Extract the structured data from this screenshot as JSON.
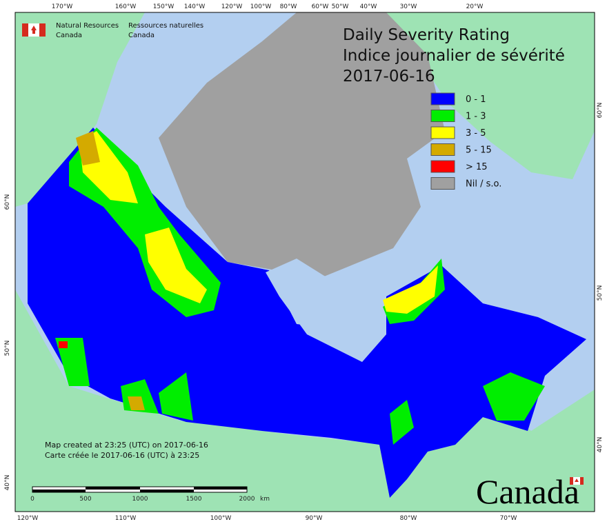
{
  "header": {
    "title": "Daily Severity Rating",
    "title_fr": "Indice journalier de sévérité",
    "date": "2017-06-16"
  },
  "agency": {
    "en": [
      "Natural Resources",
      "Canada"
    ],
    "fr": [
      "Ressources naturelles",
      "Canada"
    ]
  },
  "legend": [
    {
      "label": "0 - 1",
      "color": "#0000ff"
    },
    {
      "label": "1 - 3",
      "color": "#00ee00"
    },
    {
      "label": "3 - 5",
      "color": "#ffff00"
    },
    {
      "label": "5 - 15",
      "color": "#d4aa00"
    },
    {
      "label": "> 15",
      "color": "#ff0000"
    },
    {
      "label": "Nil / s.o.",
      "color": "#a0a0a0"
    }
  ],
  "top_labels": [
    "170°W",
    "160°W",
    "150°W",
    "140°W",
    "120°W",
    "100°W",
    "80°W",
    "60°W",
    "50°W",
    "40°W",
    "30°W",
    "20°W"
  ],
  "bottom_labels": [
    "120°W",
    "110°W",
    "100°W",
    "90°W",
    "80°W",
    "70°W"
  ],
  "left_labels": [
    "60°N",
    "50°N",
    "40°N"
  ],
  "right_labels": [
    "60°N",
    "50°N",
    "40°N"
  ],
  "footer": {
    "line1": "Map created at 23:25 (UTC) on 2017-06-16",
    "line2": "Carte créée le 2017-06-16 (UTC) à 23:25"
  },
  "scale": {
    "labels": [
      "0",
      "500",
      "1000",
      "1500",
      "2000"
    ],
    "unit": "km"
  },
  "wordmark": "Canada"
}
